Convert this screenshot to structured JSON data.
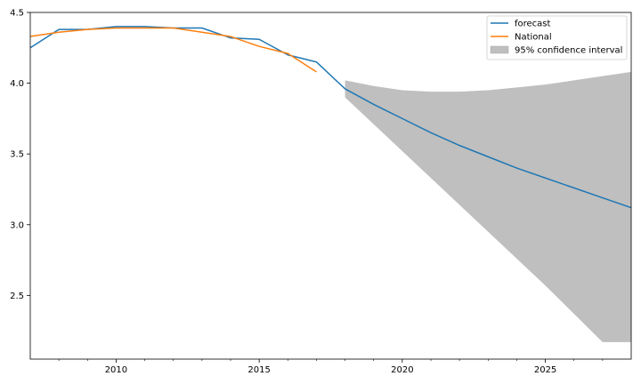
{
  "chart_data": {
    "type": "line",
    "xlim": [
      2007,
      2028
    ],
    "ylim": [
      2.05,
      4.5
    ],
    "x_ticks": [
      2010,
      2015,
      2020,
      2025
    ],
    "x_minor_ticks": [
      2008,
      2009,
      2011,
      2012,
      2013,
      2014,
      2016,
      2017,
      2018,
      2019,
      2021,
      2022,
      2023,
      2024,
      2026,
      2027
    ],
    "y_ticks": [
      2.5,
      3.0,
      3.5,
      4.0,
      4.5
    ],
    "x_tick_labels": [
      "2010",
      "2015",
      "2020",
      "2025"
    ],
    "y_tick_labels": [
      "2.5",
      "3.0",
      "3.5",
      "4.0",
      "4.5"
    ],
    "grid": false,
    "legend_position": "top-right",
    "series": [
      {
        "name": "forecast",
        "color": "#1f77b4",
        "x": [
          2007,
          2008,
          2009,
          2010,
          2011,
          2012,
          2013,
          2014,
          2015,
          2016,
          2017,
          2018,
          2019,
          2020,
          2021,
          2022,
          2023,
          2024,
          2025,
          2026,
          2027,
          2028
        ],
        "y": [
          4.25,
          4.38,
          4.38,
          4.4,
          4.4,
          4.39,
          4.39,
          4.32,
          4.31,
          4.2,
          4.15,
          3.96,
          3.85,
          3.75,
          3.65,
          3.56,
          3.48,
          3.4,
          3.33,
          3.26,
          3.19,
          3.12
        ]
      },
      {
        "name": "National",
        "color": "#ff7f0e",
        "x": [
          2007,
          2008,
          2009,
          2010,
          2011,
          2012,
          2013,
          2014,
          2015,
          2016,
          2017
        ],
        "y": [
          4.33,
          4.36,
          4.38,
          4.39,
          4.39,
          4.39,
          4.36,
          4.33,
          4.26,
          4.21,
          4.08
        ]
      }
    ],
    "confidence_interval": {
      "name": "95% confidence interval",
      "color": "#bfbfbf",
      "x": [
        2018,
        2019,
        2020,
        2021,
        2022,
        2023,
        2024,
        2025,
        2026,
        2027,
        2028
      ],
      "upper": [
        4.02,
        3.98,
        3.95,
        3.94,
        3.94,
        3.95,
        3.97,
        3.99,
        4.02,
        4.05,
        4.08
      ],
      "lower": [
        3.9,
        3.71,
        3.52,
        3.33,
        3.14,
        2.95,
        2.76,
        2.57,
        2.37,
        2.17,
        2.17
      ]
    }
  }
}
